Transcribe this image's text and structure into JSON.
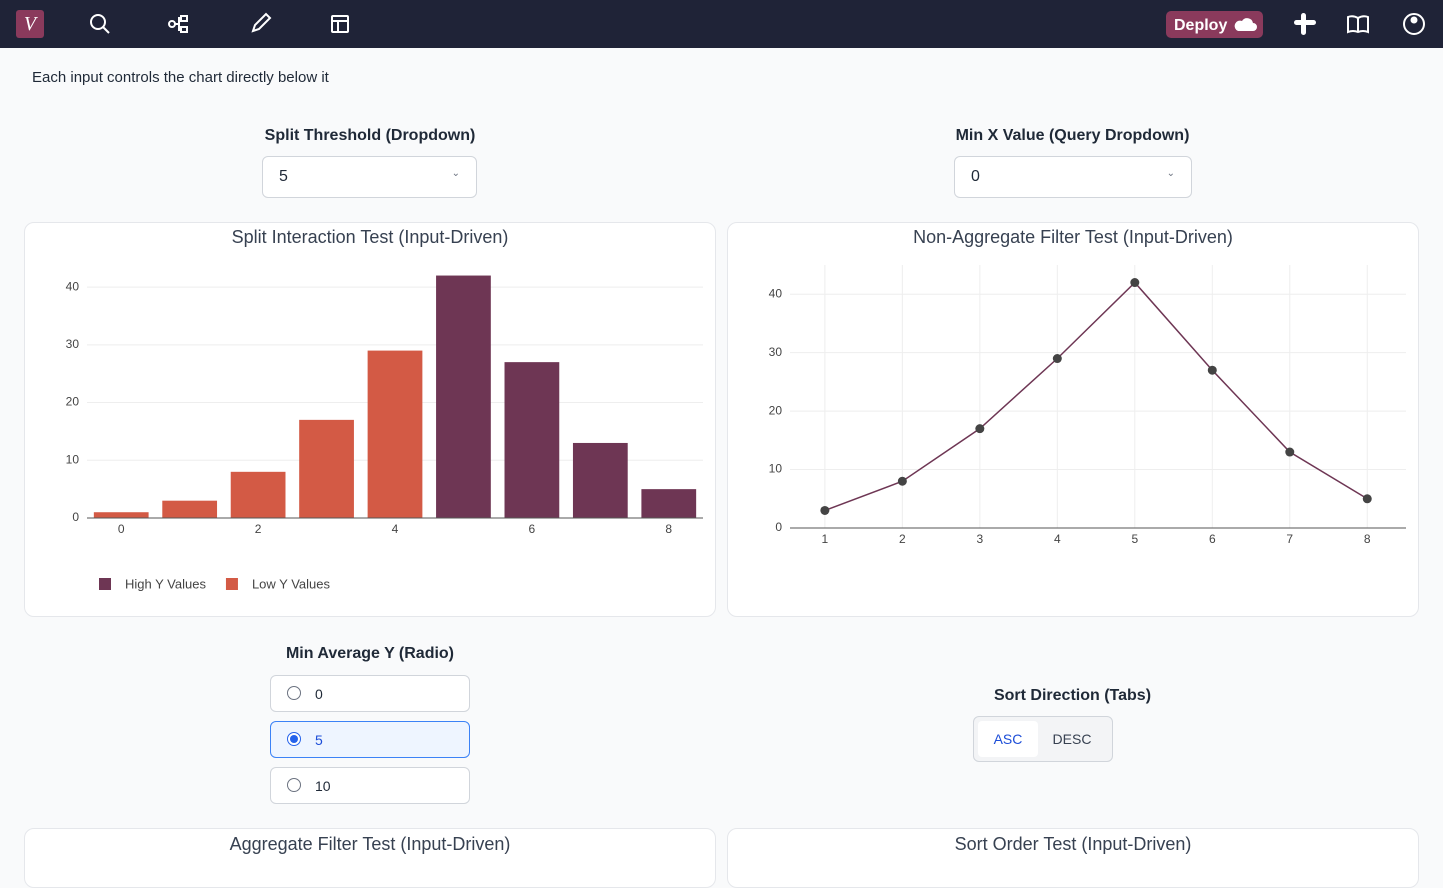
{
  "nav": {
    "deploy": "Deploy"
  },
  "intro": "Each input controls the chart directly below it",
  "inputs": {
    "split_threshold": {
      "label": "Split Threshold (Dropdown)",
      "value": "5"
    },
    "min_x": {
      "label": "Min X Value (Query Dropdown)",
      "value": "0"
    },
    "min_avg_y": {
      "label": "Min Average Y (Radio)",
      "options": [
        "0",
        "5",
        "10"
      ],
      "selected": 1
    },
    "sort_direction": {
      "label": "Sort Direction (Tabs)",
      "tabs": [
        "ASC",
        "DESC"
      ],
      "selected": 0
    }
  },
  "chart_data": [
    {
      "type": "bar",
      "title": "Split Interaction Test (Input-Driven)",
      "x": [
        0,
        1,
        2,
        3,
        4,
        5,
        6,
        7,
        8
      ],
      "series": [
        {
          "name": "High Y Values",
          "color": "#6e3654",
          "values": [
            null,
            null,
            null,
            null,
            null,
            42,
            27,
            13,
            5
          ]
        },
        {
          "name": "Low Y Values",
          "color": "#d35a45",
          "values": [
            1,
            3,
            8,
            17,
            29,
            null,
            null,
            null,
            null
          ]
        }
      ],
      "xlim": [
        -0.5,
        8.5
      ],
      "xticks": [
        0,
        2,
        4,
        6,
        8
      ],
      "ylim": [
        0,
        44
      ],
      "yticks": [
        0,
        10,
        20,
        30,
        40
      ],
      "grid": "y",
      "legend": "bottom-left"
    },
    {
      "type": "line",
      "title": "Non-Aggregate Filter Test (Input-Driven)",
      "x": [
        1,
        2,
        3,
        4,
        5,
        6,
        7,
        8
      ],
      "values": [
        3,
        8,
        17,
        29,
        42,
        27,
        13,
        5
      ],
      "color": "#6e3654",
      "marker_color": "#444444",
      "xlim": [
        0.55,
        8.5
      ],
      "xticks": [
        1,
        2,
        3,
        4,
        5,
        6,
        7,
        8
      ],
      "ylim": [
        0,
        45
      ],
      "yticks": [
        0,
        10,
        20,
        30,
        40
      ],
      "grid": "both"
    }
  ],
  "panels_below": [
    "Aggregate Filter Test (Input-Driven)",
    "Sort Order Test (Input-Driven)"
  ]
}
